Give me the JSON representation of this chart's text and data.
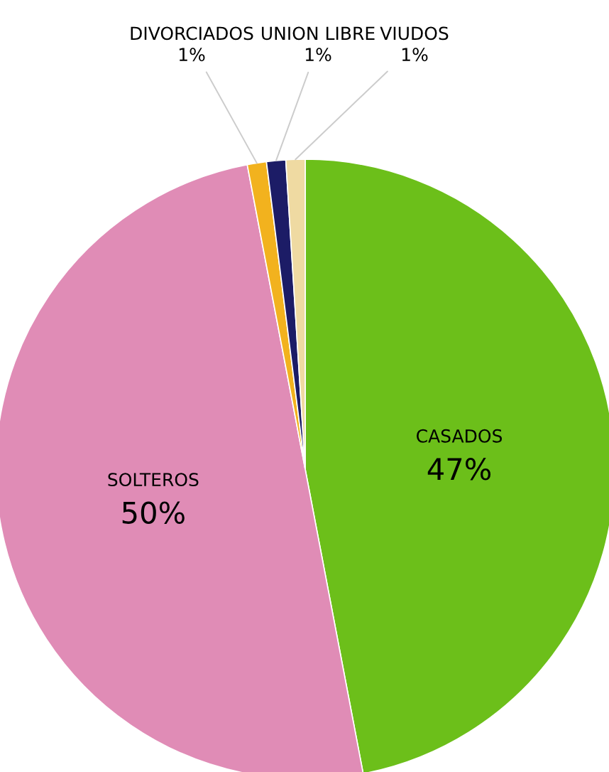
{
  "chart_data": {
    "type": "pie",
    "categories": [
      "CASADOS",
      "SOLTEROS",
      "DIVORCIADOS",
      "UNION LIBRE",
      "VIUDOS"
    ],
    "values": [
      47,
      50,
      1,
      1,
      1
    ],
    "value_labels": [
      "47%",
      "50%",
      "1%",
      "1%",
      "1%"
    ],
    "colors": [
      "#6cbf1a",
      "#e08cb6",
      "#f2b21e",
      "#1c1c66",
      "#efdaa2"
    ]
  }
}
